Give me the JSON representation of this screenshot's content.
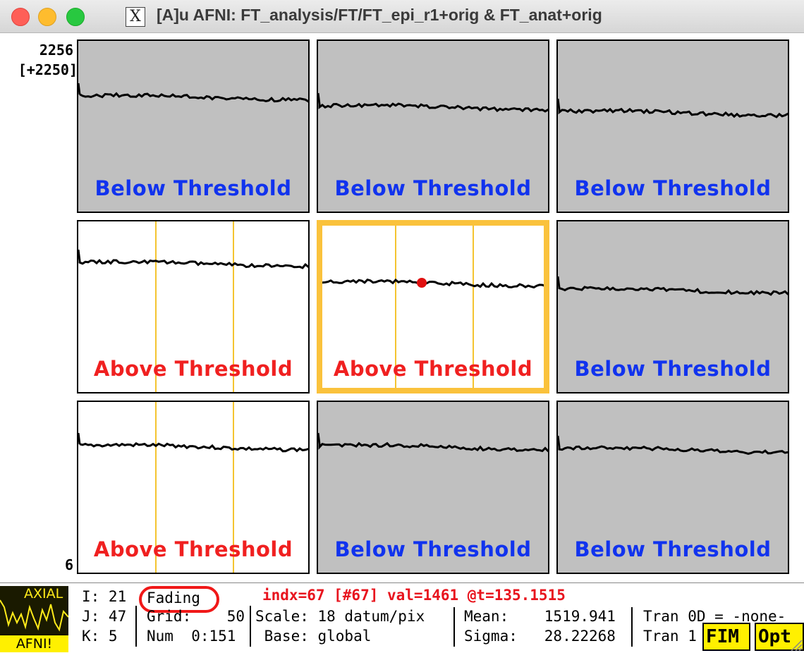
{
  "window": {
    "title": "[A]u AFNI: FT_analysis/FT/FT_epi_r1+orig & FT_anat+orig",
    "x_glyph": "X"
  },
  "graph": {
    "ymax_label": "2256",
    "ymax_offset": "[+2250]",
    "ymin_label": "6",
    "panels": [
      {
        "label": "Below Threshold",
        "state": "below"
      },
      {
        "label": "Below Threshold",
        "state": "below"
      },
      {
        "label": "Below Threshold",
        "state": "below"
      },
      {
        "label": "Above Threshold",
        "state": "above"
      },
      {
        "label": "Above Threshold",
        "state": "above",
        "selected": true
      },
      {
        "label": "Below Threshold",
        "state": "below"
      },
      {
        "label": "Above Threshold",
        "state": "above"
      },
      {
        "label": "Below Threshold",
        "state": "below"
      },
      {
        "label": "Below Threshold",
        "state": "below"
      }
    ]
  },
  "status": {
    "logo_top": "AXIAL",
    "logo_bottom": "AFNI!",
    "i_row": "I: 21",
    "j_row": "J: 47",
    "k_row": "K: 5",
    "fading": "Fading",
    "grid": "Grid:    50",
    "num": "Num  0:151",
    "info": "indx=67 [#67] val=1461 @t=135.1515",
    "scale": "Scale: 18 datum/pix",
    "base": " Base: global",
    "mean": "Mean:    1519.941",
    "sigma": "Sigma:   28.22268",
    "tran0": "Tran 0D = -none-",
    "tran1": "Tran 1",
    "fim_button": "FIM",
    "opt_button": "Opt"
  },
  "colors": {
    "below_label": "#1133ee",
    "above_label": "#f02020",
    "selection_border": "#fac23c",
    "grid_line": "#f4c430"
  }
}
